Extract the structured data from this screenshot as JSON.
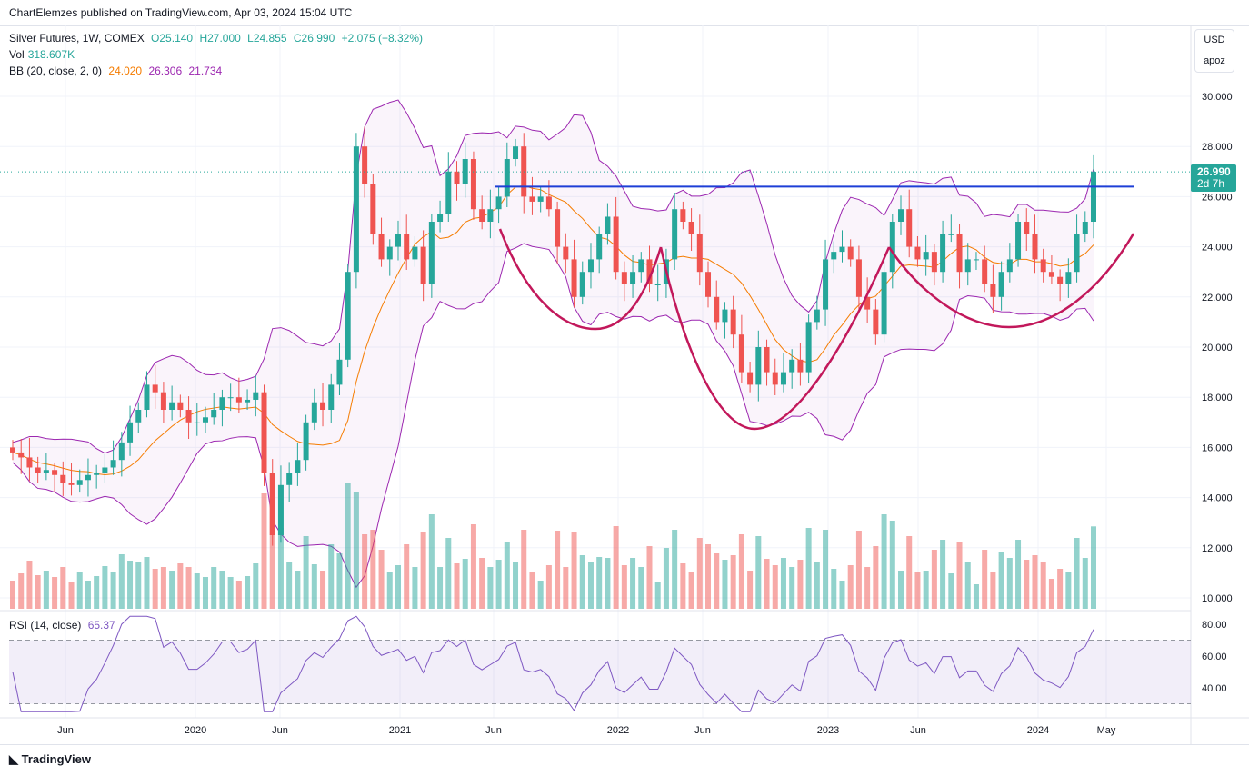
{
  "published": "ChartElemzes published on TradingView.com, Apr 03, 2024 15:04 UTC",
  "legend": {
    "symbol": "Silver Futures, 1W, COMEX",
    "open": "O25.140",
    "high": "H27.000",
    "low": "L24.855",
    "close": "C26.990",
    "change": "+2.075 (+8.32%)",
    "vol_label": "Vol",
    "vol": "318.607K",
    "bb_label": "BB (20, close, 2, 0)",
    "bb_basis": "24.020",
    "bb_upper": "26.306",
    "bb_lower": "21.734",
    "rsi_label": "RSI (14, close)",
    "rsi": "65.37"
  },
  "axis": {
    "currency": "USD",
    "mode": "apoz",
    "last_price": "26.990",
    "countdown": "2d 7h"
  },
  "footer": {
    "brand": "TradingView"
  },
  "colors": {
    "up": "#26a69a",
    "down": "#ef5350",
    "basis": "#f57c00",
    "band": "#9c27b0",
    "resistance": "#1e3fd6",
    "pattern": "#c2185b",
    "rsi": "#7e57c2"
  },
  "chart_data": {
    "type": "candlestick",
    "title": "Silver Futures, 1W, COMEX",
    "interval": "2-week sampled closes (approx.)",
    "ylim": [
      10,
      30.5
    ],
    "y_ticks": [
      "30.000",
      "28.000",
      "26.000",
      "24.000",
      "22.000",
      "20.000",
      "18.000",
      "16.000",
      "14.000",
      "12.000",
      "10.000"
    ],
    "x_ticks": [
      "Jun",
      "2020",
      "Jun",
      "2021",
      "Jun",
      "2022",
      "Jun",
      "2023",
      "Jun",
      "2024",
      "May"
    ],
    "rsi_ticks": [
      "80.00",
      "60.00",
      "40.00"
    ],
    "resistance": 26.4,
    "closes": [
      15.8,
      15.6,
      15.2,
      15.0,
      15.1,
      14.9,
      14.6,
      14.5,
      14.7,
      14.9,
      15.0,
      15.2,
      15.5,
      16.2,
      17.0,
      17.5,
      18.5,
      18.2,
      17.5,
      17.8,
      17.5,
      17.0,
      17.0,
      17.2,
      17.5,
      18.0,
      18.0,
      17.8,
      17.9,
      18.2,
      15.0,
      12.5,
      14.5,
      15.0,
      15.5,
      17.0,
      17.8,
      17.5,
      18.5,
      19.5,
      23.0,
      28.0,
      26.5,
      24.5,
      23.5,
      24.0,
      24.5,
      23.5,
      24.0,
      22.5,
      25.0,
      25.3,
      27.0,
      26.5,
      27.5,
      25.5,
      25.0,
      25.5,
      26.0,
      27.5,
      28.0,
      26.0,
      25.8,
      26.0,
      25.5,
      24.0,
      23.5,
      22.0,
      23.0,
      23.5,
      24.5,
      25.2,
      23.0,
      22.5,
      23.0,
      23.5,
      22.5,
      22.5,
      23.5,
      25.5,
      25.0,
      24.5,
      23.0,
      22.0,
      21.0,
      21.5,
      20.5,
      19.0,
      18.5,
      20.0,
      19.0,
      18.5,
      19.0,
      19.5,
      19.0,
      21.0,
      21.5,
      23.5,
      23.8,
      24.0,
      23.5,
      22.0,
      21.5,
      20.5,
      23.0,
      25.0,
      25.5,
      24.0,
      23.5,
      23.8,
      23.0,
      24.5,
      24.5,
      23.0,
      23.5,
      23.5,
      22.5,
      22.0,
      23.0,
      23.5,
      25.0,
      24.5,
      23.5,
      23.0,
      22.8,
      22.5,
      23.0,
      24.5,
      25.0,
      26.99
    ]
  }
}
